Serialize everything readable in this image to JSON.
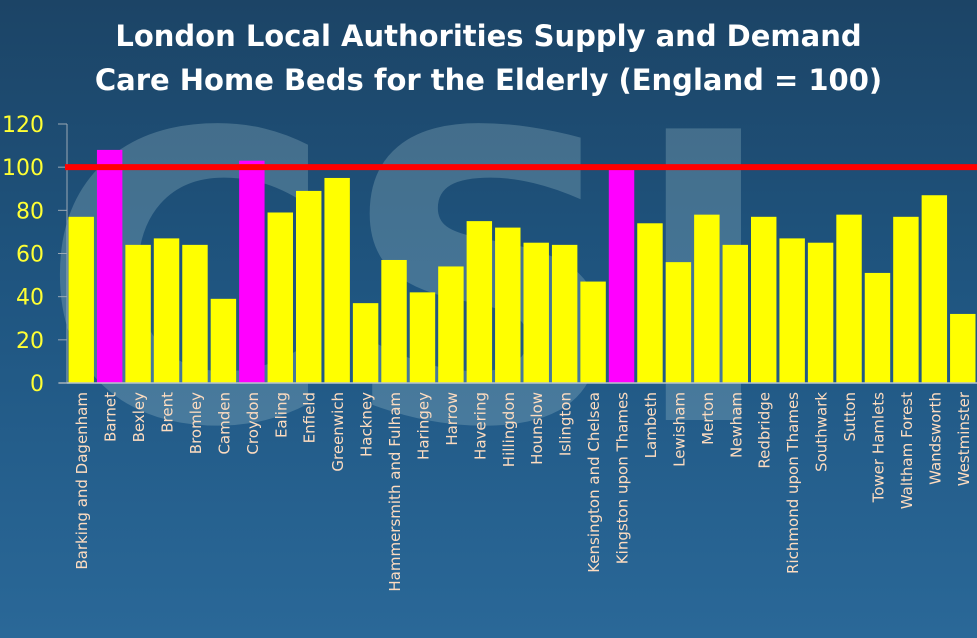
{
  "chart_data": {
    "type": "bar",
    "title_line1": "London Local Authorities Supply and Demand",
    "title_line2": "Care Home Beds for the Elderly (England = 100)",
    "categories": [
      "Barking and Dagenham",
      "Barnet",
      "Bexley",
      "Brent",
      "Bromley",
      "Camden",
      "Croydon",
      "Ealing",
      "Enfield",
      "Greenwich",
      "Hackney",
      "Hammersmith and Fulham",
      "Haringey",
      "Harrow",
      "Havering",
      "Hillingdon",
      "Hounslow",
      "Islington",
      "Kensington and Chelsea",
      "Kingston upon Thames",
      "Lambeth",
      "Lewisham",
      "Merton",
      "Newham",
      "Redbridge",
      "Richmond upon Thames",
      "Southwark",
      "Sutton",
      "Tower Hamlets",
      "Waltham Forest",
      "Wandsworth",
      "Westminster"
    ],
    "values": [
      77,
      108,
      64,
      67,
      64,
      39,
      103,
      79,
      89,
      95,
      37,
      57,
      42,
      54,
      75,
      72,
      65,
      64,
      47,
      99,
      74,
      56,
      78,
      64,
      77,
      67,
      65,
      78,
      51,
      77,
      87,
      32
    ],
    "highlighted": [
      "Barnet",
      "Croydon",
      "Kingston upon Thames"
    ],
    "ylim": [
      0,
      120
    ],
    "yticks": [
      0,
      20,
      40,
      60,
      80,
      100,
      120
    ],
    "reference_line": 100,
    "grid": false,
    "legend": "none",
    "colors": {
      "bar": "#ffff00",
      "highlight": "#ff00ff",
      "reference": "#ff0000",
      "tick_label": "#ffff33",
      "category_label": "#fddcc0"
    }
  }
}
